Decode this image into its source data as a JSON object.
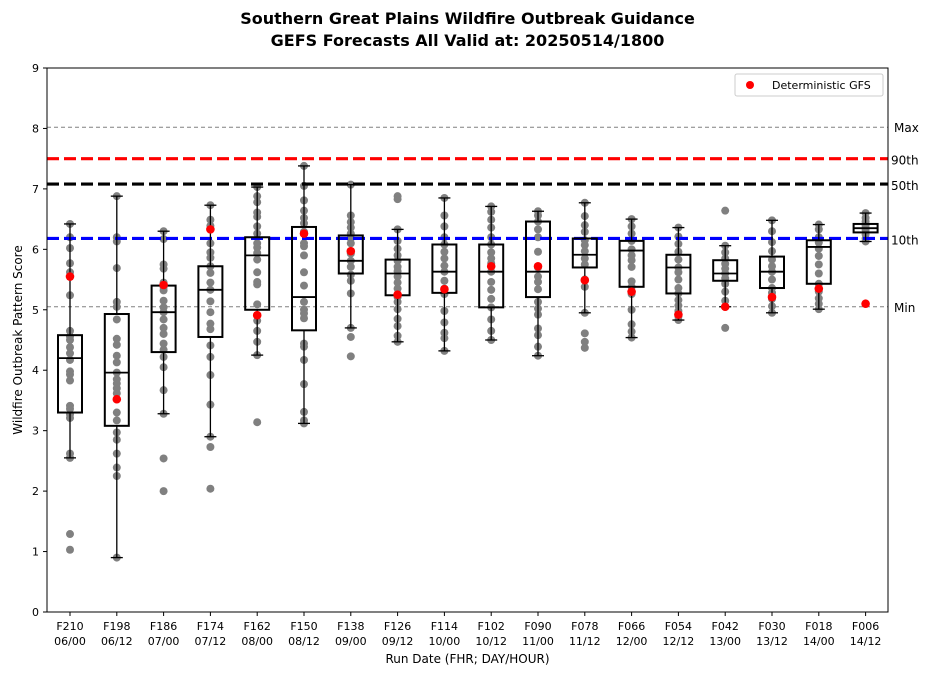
{
  "chart_data": {
    "type": "box",
    "title": "Southern Great Plains Wildfire Outbreak Guidance",
    "subtitle": "GEFS Forecasts All Valid at: 20250514/1800",
    "xlabel": "Run Date (FHR; DAY/HOUR)",
    "ylabel": "Wildfire Outbreak Pattern Score",
    "ylim": [
      0,
      9
    ],
    "yticks": [
      "0",
      "1",
      "2",
      "3",
      "4",
      "5",
      "6",
      "7",
      "8",
      "9"
    ],
    "grid": false,
    "legend": {
      "placement": "top-right",
      "entries": [
        {
          "label": "Deterministic GFS",
          "color": "#ff0000",
          "marker": "circle"
        }
      ]
    },
    "categories": [
      {
        "fhr": "F210",
        "run": "06/00"
      },
      {
        "fhr": "F198",
        "run": "06/12"
      },
      {
        "fhr": "F186",
        "run": "07/00"
      },
      {
        "fhr": "F174",
        "run": "07/12"
      },
      {
        "fhr": "F162",
        "run": "08/00"
      },
      {
        "fhr": "F150",
        "run": "08/12"
      },
      {
        "fhr": "F138",
        "run": "09/00"
      },
      {
        "fhr": "F126",
        "run": "09/12"
      },
      {
        "fhr": "F114",
        "run": "10/00"
      },
      {
        "fhr": "F102",
        "run": "10/12"
      },
      {
        "fhr": "F090",
        "run": "11/00"
      },
      {
        "fhr": "F078",
        "run": "11/12"
      },
      {
        "fhr": "F066",
        "run": "12/00"
      },
      {
        "fhr": "F054",
        "run": "12/12"
      },
      {
        "fhr": "F042",
        "run": "13/00"
      },
      {
        "fhr": "F030",
        "run": "13/12"
      },
      {
        "fhr": "F018",
        "run": "14/00"
      },
      {
        "fhr": "F006",
        "run": "14/12"
      }
    ],
    "reference_lines": [
      {
        "label": "Max",
        "value": 8.02,
        "color": "#808080",
        "style": "dashed-thin"
      },
      {
        "label": "90th",
        "value": 7.5,
        "color": "#ff0000",
        "style": "dashed-thick"
      },
      {
        "label": "50th",
        "value": 7.08,
        "color": "#000000",
        "style": "dashed-thick"
      },
      {
        "label": "10th",
        "value": 6.18,
        "color": "#0000ff",
        "style": "dashed-thick"
      },
      {
        "label": "Min",
        "value": 5.05,
        "color": "#808080",
        "style": "dashed-thin"
      }
    ],
    "boxes": [
      {
        "wlo": 2.55,
        "q1": 3.3,
        "med": 4.2,
        "q3": 4.58,
        "whi": 6.42
      },
      {
        "wlo": 0.9,
        "q1": 3.08,
        "med": 3.96,
        "q3": 4.93,
        "whi": 6.88
      },
      {
        "wlo": 3.28,
        "q1": 4.3,
        "med": 4.96,
        "q3": 5.4,
        "whi": 6.3
      },
      {
        "wlo": 2.9,
        "q1": 4.55,
        "med": 5.33,
        "q3": 5.72,
        "whi": 6.73
      },
      {
        "wlo": 4.25,
        "q1": 5.0,
        "med": 5.9,
        "q3": 6.2,
        "whi": 7.03
      },
      {
        "wlo": 3.12,
        "q1": 4.66,
        "med": 5.21,
        "q3": 6.37,
        "whi": 7.38
      },
      {
        "wlo": 4.7,
        "q1": 5.6,
        "med": 5.81,
        "q3": 6.23,
        "whi": 7.07
      },
      {
        "wlo": 4.47,
        "q1": 5.24,
        "med": 5.6,
        "q3": 5.83,
        "whi": 6.33
      },
      {
        "wlo": 4.32,
        "q1": 5.28,
        "med": 5.63,
        "q3": 6.08,
        "whi": 6.85
      },
      {
        "wlo": 4.5,
        "q1": 5.04,
        "med": 5.63,
        "q3": 6.08,
        "whi": 6.71
      },
      {
        "wlo": 4.24,
        "q1": 5.21,
        "med": 5.63,
        "q3": 6.46,
        "whi": 6.63
      },
      {
        "wlo": 4.95,
        "q1": 5.7,
        "med": 5.91,
        "q3": 6.18,
        "whi": 6.77
      },
      {
        "wlo": 4.54,
        "q1": 5.38,
        "med": 5.98,
        "q3": 6.14,
        "whi": 6.5
      },
      {
        "wlo": 4.83,
        "q1": 5.27,
        "med": 5.7,
        "q3": 5.91,
        "whi": 6.36
      },
      {
        "wlo": 5.05,
        "q1": 5.48,
        "med": 5.6,
        "q3": 5.82,
        "whi": 6.06
      },
      {
        "wlo": 4.95,
        "q1": 5.36,
        "med": 5.63,
        "q3": 5.88,
        "whi": 6.48
      },
      {
        "wlo": 5.01,
        "q1": 5.43,
        "med": 6.04,
        "q3": 6.15,
        "whi": 6.41
      },
      {
        "wlo": 6.13,
        "q1": 6.28,
        "med": 6.35,
        "q3": 6.42,
        "whi": 6.6
      }
    ],
    "members": [
      [
        1.03,
        1.29,
        2.55,
        2.62,
        3.21,
        3.27,
        3.36,
        3.41,
        3.83,
        3.93,
        3.98,
        4.17,
        4.28,
        4.38,
        4.5,
        4.56,
        4.65,
        5.24,
        5.62,
        5.77,
        6.02,
        6.2,
        6.42
      ],
      [
        0.9,
        2.25,
        2.39,
        2.62,
        2.85,
        2.97,
        3.17,
        3.3,
        3.62,
        3.7,
        3.78,
        3.85,
        3.96,
        4.13,
        4.24,
        4.42,
        4.52,
        4.84,
        5.05,
        5.13,
        5.69,
        6.13,
        6.2,
        6.88
      ],
      [
        2.0,
        2.54,
        3.28,
        3.67,
        4.05,
        4.22,
        4.34,
        4.44,
        4.6,
        4.7,
        4.84,
        4.96,
        5.04,
        5.15,
        5.32,
        5.37,
        5.45,
        5.68,
        5.75,
        6.17,
        6.3
      ],
      [
        2.04,
        2.73,
        2.9,
        3.43,
        3.92,
        4.22,
        4.41,
        4.68,
        4.77,
        4.96,
        5.14,
        5.33,
        5.45,
        5.61,
        5.72,
        5.86,
        5.95,
        6.1,
        6.39,
        6.49,
        6.73
      ],
      [
        3.14,
        4.25,
        4.47,
        4.65,
        4.82,
        5.09,
        5.42,
        5.46,
        5.62,
        5.83,
        5.94,
        6.03,
        6.1,
        6.26,
        6.38,
        6.54,
        6.61,
        6.78,
        6.88,
        7.03
      ],
      [
        3.12,
        3.17,
        3.31,
        3.77,
        4.17,
        4.39,
        4.44,
        4.86,
        4.94,
        5.0,
        5.13,
        5.4,
        5.62,
        5.9,
        6.05,
        6.1,
        6.29,
        6.43,
        6.52,
        6.64,
        6.81,
        7.05,
        7.38
      ],
      [
        4.23,
        4.55,
        4.7,
        5.27,
        5.48,
        5.58,
        5.71,
        5.81,
        5.93,
        6.1,
        6.18,
        6.26,
        6.36,
        6.45,
        6.56,
        7.07
      ],
      [
        4.47,
        4.57,
        4.73,
        4.85,
        5.01,
        5.13,
        5.21,
        5.35,
        5.45,
        5.55,
        5.64,
        5.71,
        5.81,
        5.9,
        6.01,
        6.14,
        6.33,
        6.83,
        6.88
      ],
      [
        4.32,
        4.53,
        4.62,
        4.79,
        4.98,
        5.26,
        5.35,
        5.48,
        5.63,
        5.73,
        5.85,
        5.96,
        6.08,
        6.2,
        6.38,
        6.56,
        6.85
      ],
      [
        4.5,
        4.65,
        4.84,
        5.04,
        5.18,
        5.33,
        5.46,
        5.63,
        5.77,
        5.85,
        5.95,
        6.08,
        6.2,
        6.36,
        6.49,
        6.62,
        6.71
      ],
      [
        4.24,
        4.39,
        4.58,
        4.69,
        4.92,
        5.02,
        5.13,
        5.34,
        5.46,
        5.55,
        5.7,
        5.96,
        6.2,
        6.33,
        6.46,
        6.56,
        6.63
      ],
      [
        4.37,
        4.47,
        4.61,
        4.95,
        5.38,
        5.5,
        5.75,
        5.85,
        5.97,
        6.07,
        6.15,
        6.29,
        6.4,
        6.55,
        6.77
      ],
      [
        4.54,
        4.64,
        4.76,
        5.0,
        5.26,
        5.38,
        5.47,
        5.71,
        5.82,
        5.9,
        6.0,
        6.14,
        6.26,
        6.38,
        6.5
      ],
      [
        4.83,
        4.89,
        4.98,
        5.07,
        5.16,
        5.27,
        5.36,
        5.5,
        5.62,
        5.7,
        5.83,
        5.96,
        6.09,
        6.21,
        6.36
      ],
      [
        4.7,
        5.05,
        5.15,
        5.3,
        5.43,
        5.52,
        5.6,
        5.68,
        5.76,
        5.85,
        5.95,
        6.06,
        6.64
      ],
      [
        4.95,
        5.06,
        5.18,
        5.28,
        5.36,
        5.5,
        5.63,
        5.72,
        5.83,
        5.97,
        6.12,
        6.3,
        6.48
      ],
      [
        5.01,
        5.1,
        5.19,
        5.3,
        5.43,
        5.6,
        5.75,
        5.89,
        6.01,
        6.11,
        6.2,
        6.33,
        6.41
      ],
      [
        6.13,
        6.18,
        6.25,
        6.32,
        6.36,
        6.4,
        6.46,
        6.52,
        6.6
      ]
    ],
    "deterministic": [
      5.55,
      3.52,
      5.41,
      6.33,
      4.91,
      6.26,
      5.97,
      5.25,
      5.34,
      5.72,
      5.72,
      5.49,
      5.3,
      4.92,
      5.05,
      5.21,
      5.35,
      5.1
    ]
  }
}
